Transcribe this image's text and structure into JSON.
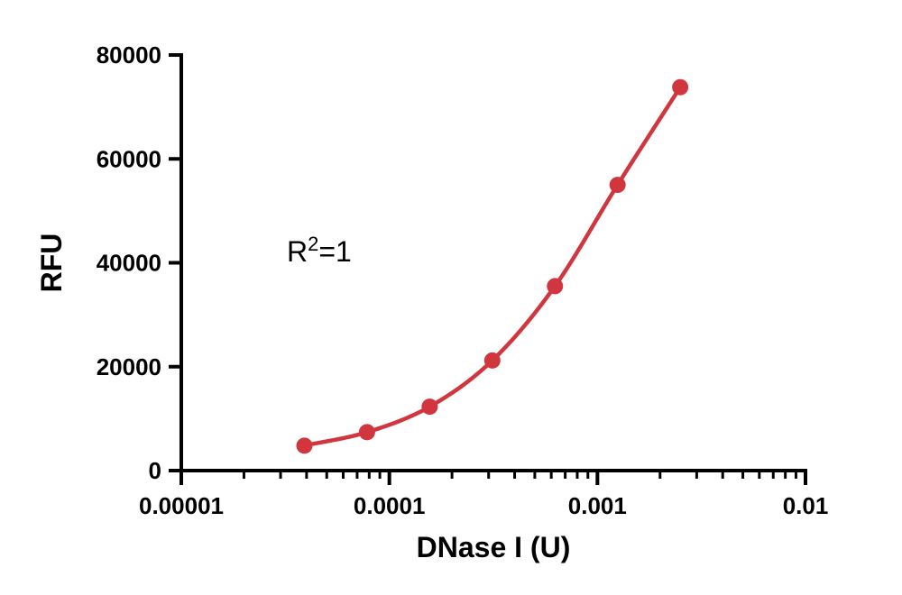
{
  "chart_data": {
    "type": "scatter",
    "xlabel": "DNase I (U)",
    "ylabel": "RFU",
    "x_scale": "log",
    "xlim": [
      1e-05,
      0.01
    ],
    "ylim": [
      0,
      80000
    ],
    "x_ticks": [
      1e-05,
      0.0001,
      0.001,
      0.01
    ],
    "x_tick_labels": [
      "0.00001",
      "0.0001",
      "0.001",
      "0.01"
    ],
    "y_ticks": [
      0,
      20000,
      40000,
      60000,
      80000
    ],
    "y_tick_labels": [
      "0",
      "20000",
      "40000",
      "60000",
      "80000"
    ],
    "grid": false,
    "annotation": {
      "base": "R",
      "sup": "2",
      "rest": "=1"
    },
    "series": [
      {
        "color": "#d1363f",
        "x": [
          3.906e-05,
          7.81e-05,
          0.00015625,
          0.0003125,
          0.000625,
          0.00125,
          0.0025
        ],
        "y": [
          4800,
          7400,
          12300,
          21200,
          35500,
          55000,
          73800
        ],
        "fit": "smooth"
      }
    ]
  }
}
